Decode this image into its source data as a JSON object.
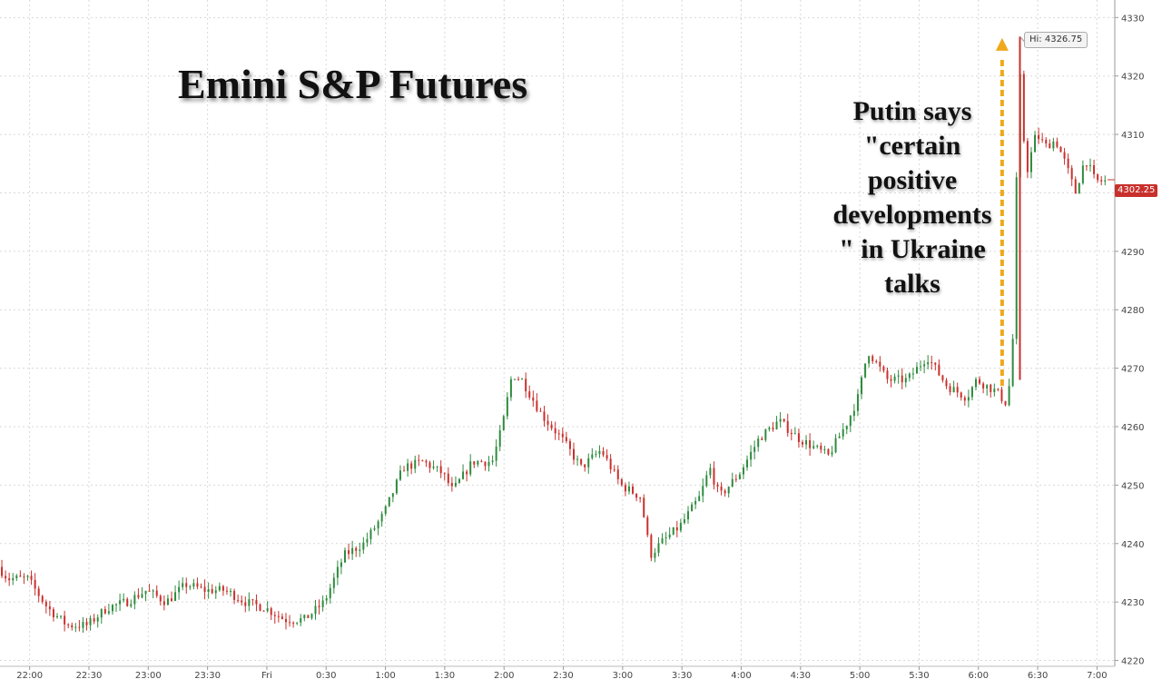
{
  "title": "Emini S&P Futures",
  "annotation": "Putin says\n\"certain\npositive\ndevelopments\n\" in Ukraine\ntalks",
  "high_label": "Hi: 4326.75",
  "last_price_label": "4302.25",
  "colors": {
    "up": "#2e8b3e",
    "down": "#c9302c",
    "arrow": "#f0a81c",
    "grid": "#d8d8d8"
  },
  "chart_data": {
    "type": "candlestick",
    "x_tick_labels": [
      "22:00",
      "22:30",
      "23:00",
      "23:30",
      "Fri",
      "0:30",
      "1:00",
      "1:30",
      "2:00",
      "2:30",
      "3:00",
      "3:30",
      "4:00",
      "4:30",
      "5:00",
      "5:30",
      "6:00",
      "6:30",
      "7:00"
    ],
    "y_ticks": [
      4220,
      4230,
      4240,
      4250,
      4260,
      4270,
      4280,
      4290,
      4300,
      4310,
      4320,
      4330
    ],
    "ylim": [
      4219,
      4333
    ],
    "xlim_hours_from_2145": [
      0,
      9.4
    ],
    "grid": true,
    "high": 4326.75,
    "last": 4302.25,
    "price_path_keypoints": [
      {
        "t": "21:45",
        "price": 4236
      },
      {
        "t": "21:50",
        "price": 4234
      },
      {
        "t": "22:00",
        "price": 4234
      },
      {
        "t": "22:10",
        "price": 4229
      },
      {
        "t": "22:20",
        "price": 4226
      },
      {
        "t": "22:30",
        "price": 4226
      },
      {
        "t": "22:40",
        "price": 4229
      },
      {
        "t": "22:50",
        "price": 4230
      },
      {
        "t": "23:00",
        "price": 4232
      },
      {
        "t": "23:10",
        "price": 4230
      },
      {
        "t": "23:20",
        "price": 4233
      },
      {
        "t": "23:30",
        "price": 4232
      },
      {
        "t": "23:40",
        "price": 4232
      },
      {
        "t": "23:50",
        "price": 4230
      },
      {
        "t": "00:00",
        "price": 4229
      },
      {
        "t": "00:10",
        "price": 4227
      },
      {
        "t": "00:20",
        "price": 4227
      },
      {
        "t": "00:30",
        "price": 4230
      },
      {
        "t": "00:40",
        "price": 4238
      },
      {
        "t": "00:50",
        "price": 4240
      },
      {
        "t": "01:00",
        "price": 4245
      },
      {
        "t": "01:10",
        "price": 4253
      },
      {
        "t": "01:20",
        "price": 4254
      },
      {
        "t": "01:30",
        "price": 4252
      },
      {
        "t": "01:35",
        "price": 4249
      },
      {
        "t": "01:45",
        "price": 4254
      },
      {
        "t": "01:55",
        "price": 4254
      },
      {
        "t": "02:00",
        "price": 4260
      },
      {
        "t": "02:05",
        "price": 4269
      },
      {
        "t": "02:10",
        "price": 4268
      },
      {
        "t": "02:20",
        "price": 4262
      },
      {
        "t": "02:30",
        "price": 4258
      },
      {
        "t": "02:40",
        "price": 4253
      },
      {
        "t": "02:50",
        "price": 4256
      },
      {
        "t": "03:00",
        "price": 4250
      },
      {
        "t": "03:10",
        "price": 4248
      },
      {
        "t": "03:15",
        "price": 4238
      },
      {
        "t": "03:20",
        "price": 4240
      },
      {
        "t": "03:30",
        "price": 4243
      },
      {
        "t": "03:40",
        "price": 4248
      },
      {
        "t": "03:45",
        "price": 4253
      },
      {
        "t": "03:50",
        "price": 4248
      },
      {
        "t": "04:00",
        "price": 4252
      },
      {
        "t": "04:10",
        "price": 4258
      },
      {
        "t": "04:20",
        "price": 4261
      },
      {
        "t": "04:30",
        "price": 4258
      },
      {
        "t": "04:40",
        "price": 4256
      },
      {
        "t": "04:45",
        "price": 4255
      },
      {
        "t": "04:55",
        "price": 4261
      },
      {
        "t": "05:00",
        "price": 4265
      },
      {
        "t": "05:05",
        "price": 4273
      },
      {
        "t": "05:15",
        "price": 4268
      },
      {
        "t": "05:25",
        "price": 4268
      },
      {
        "t": "05:35",
        "price": 4272
      },
      {
        "t": "05:45",
        "price": 4267
      },
      {
        "t": "05:55",
        "price": 4265
      },
      {
        "t": "06:00",
        "price": 4268
      },
      {
        "t": "06:10",
        "price": 4266
      },
      {
        "t": "06:15",
        "price": 4264
      },
      {
        "t": "06:18",
        "price": 4270
      },
      {
        "t": "06:20",
        "price": 4300
      },
      {
        "t": "06:22",
        "price": 4320
      },
      {
        "t": "06:25",
        "price": 4303
      },
      {
        "t": "06:30",
        "price": 4310
      },
      {
        "t": "06:35",
        "price": 4308
      },
      {
        "t": "06:40",
        "price": 4309
      },
      {
        "t": "06:45",
        "price": 4305
      },
      {
        "t": "06:50",
        "price": 4300
      },
      {
        "t": "06:55",
        "price": 4306
      },
      {
        "t": "07:00",
        "price": 4302
      },
      {
        "t": "07:05",
        "price": 4302
      }
    ]
  }
}
